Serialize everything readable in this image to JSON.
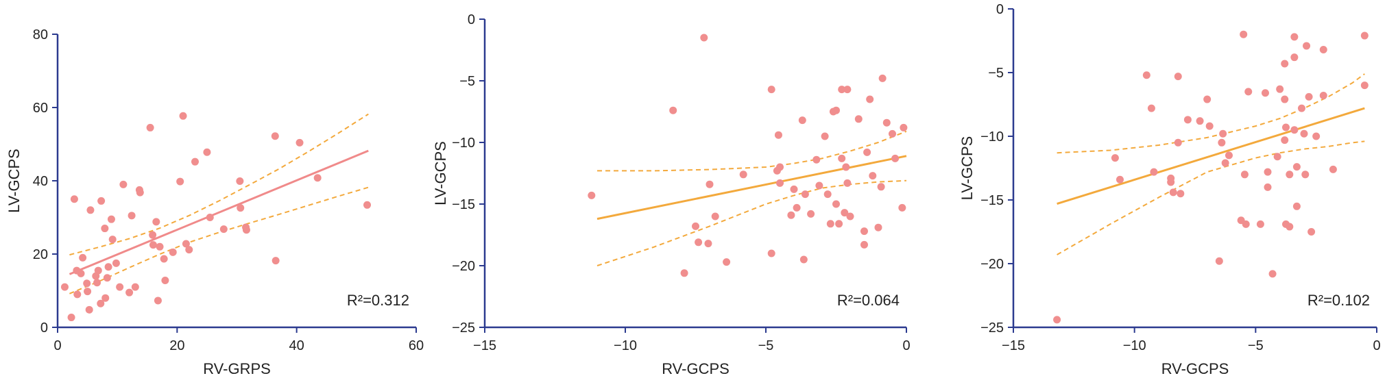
{
  "colors": {
    "axis": "#2b3a8f",
    "point": "#f08e8e",
    "fit_pink": "#f08a8a",
    "fit_orange": "#f3a93c",
    "ci": "#f3a93c"
  },
  "chart_data": [
    {
      "type": "scatter",
      "title": "",
      "xlabel": "RV-GRPS",
      "ylabel": "LV-GCPS",
      "r2_label": "R²=0.312",
      "xlim": [
        0,
        60
      ],
      "ylim": [
        0,
        80
      ],
      "xticks": [
        0,
        20,
        40,
        60
      ],
      "yticks": [
        0,
        20,
        40,
        60,
        80
      ],
      "xtick_labels": [
        "0",
        "20",
        "40",
        "60"
      ],
      "ytick_labels": [
        "0",
        "20",
        "40",
        "60",
        "80"
      ],
      "fit_color": "pink",
      "fit_line": {
        "x": [
          2,
          52
        ],
        "y": [
          14.5,
          48.2
        ]
      },
      "ci_upper": {
        "x": [
          2,
          7,
          12,
          17,
          22,
          27,
          32,
          37,
          42,
          47,
          52
        ],
        "y": [
          19.8,
          21.9,
          24.2,
          27.0,
          30.5,
          34.5,
          38.8,
          43.2,
          48.0,
          53.0,
          58.2
        ]
      },
      "ci_lower": {
        "x": [
          2,
          7,
          12,
          17,
          22,
          27,
          32,
          37,
          42,
          47,
          52
        ],
        "y": [
          9.2,
          12.6,
          16.3,
          19.9,
          23.2,
          25.9,
          28.4,
          30.8,
          33.3,
          35.8,
          38.2
        ]
      },
      "points": [
        [
          1.2,
          11
        ],
        [
          2.3,
          2.7
        ],
        [
          2.8,
          35
        ],
        [
          3.2,
          15.5
        ],
        [
          3.3,
          9
        ],
        [
          3.9,
          14.7
        ],
        [
          4.2,
          19
        ],
        [
          4.9,
          12
        ],
        [
          5,
          9.8
        ],
        [
          5.3,
          4.8
        ],
        [
          5.5,
          32
        ],
        [
          6.4,
          14
        ],
        [
          6.6,
          12.2
        ],
        [
          6.8,
          15.5
        ],
        [
          7.2,
          6.5
        ],
        [
          7.3,
          34.5
        ],
        [
          7.9,
          27
        ],
        [
          8,
          8
        ],
        [
          8.3,
          13.5
        ],
        [
          8.5,
          16.5
        ],
        [
          9,
          29.5
        ],
        [
          9.2,
          24
        ],
        [
          9.8,
          17.5
        ],
        [
          10.4,
          11
        ],
        [
          11,
          39
        ],
        [
          12,
          9.5
        ],
        [
          12.4,
          30.5
        ],
        [
          13,
          11
        ],
        [
          13.7,
          37.5
        ],
        [
          13.8,
          36.8
        ],
        [
          15.5,
          54.5
        ],
        [
          15.9,
          25.2
        ],
        [
          16,
          22.5
        ],
        [
          16.5,
          28.8
        ],
        [
          16.8,
          7.3
        ],
        [
          17.1,
          22
        ],
        [
          17.8,
          18.7
        ],
        [
          18,
          12.8
        ],
        [
          19.3,
          20.5
        ],
        [
          20.5,
          39.8
        ],
        [
          21,
          57.7
        ],
        [
          21.5,
          22.8
        ],
        [
          22,
          21.2
        ],
        [
          23,
          45.2
        ],
        [
          25,
          47.8
        ],
        [
          25.5,
          30
        ],
        [
          27.8,
          26.8
        ],
        [
          30.5,
          39.9
        ],
        [
          30.6,
          32.6
        ],
        [
          31.5,
          27.3
        ],
        [
          31.6,
          26.6
        ],
        [
          36.4,
          52.2
        ],
        [
          36.5,
          18.2
        ],
        [
          40.5,
          50.4
        ],
        [
          43.5,
          40.8
        ],
        [
          51.8,
          33.4
        ]
      ]
    },
    {
      "type": "scatter",
      "title": "",
      "xlabel": "RV-GCPS",
      "ylabel": "LV-GCPS",
      "r2_label": "R²=0.064",
      "xlim": [
        -15,
        0
      ],
      "ylim": [
        -25,
        0
      ],
      "xticks": [
        -15,
        -10,
        -5,
        0
      ],
      "yticks": [
        -25,
        -20,
        -15,
        -10,
        -5,
        0
      ],
      "xtick_labels": [
        "−15",
        "−10",
        "−5",
        "0"
      ],
      "ytick_labels": [
        "−25",
        "−20",
        "−15",
        "−10",
        "−5",
        "0"
      ],
      "fit_color": "orange",
      "fit_line": {
        "x": [
          -11,
          0
        ],
        "y": [
          -16.2,
          -11.1
        ]
      },
      "ci_upper": {
        "x": [
          -11,
          -9,
          -7,
          -5,
          -4,
          -3,
          -2,
          -1,
          0
        ],
        "y": [
          -12.3,
          -12.3,
          -12.2,
          -12.0,
          -11.7,
          -11.3,
          -10.7,
          -10.0,
          -9.1
        ]
      },
      "ci_lower": {
        "x": [
          -11,
          -9,
          -7,
          -5,
          -4,
          -3,
          -2,
          -1,
          0
        ],
        "y": [
          -20.0,
          -18.5,
          -16.8,
          -15.0,
          -14.3,
          -13.7,
          -13.4,
          -13.2,
          -13.1
        ]
      },
      "points": [
        [
          -11.2,
          -14.3
        ],
        [
          -8.3,
          -7.4
        ],
        [
          -7.9,
          -20.6
        ],
        [
          -7.5,
          -16.8
        ],
        [
          -7.4,
          -18.1
        ],
        [
          -7.2,
          -1.5
        ],
        [
          -7.05,
          -18.2
        ],
        [
          -7,
          -13.4
        ],
        [
          -6.8,
          -16
        ],
        [
          -6.4,
          -19.7
        ],
        [
          -5.8,
          -12.6
        ],
        [
          -4.8,
          -5.7
        ],
        [
          -4.8,
          -19
        ],
        [
          -4.6,
          -12.3
        ],
        [
          -4.55,
          -9.4
        ],
        [
          -4.5,
          -12
        ],
        [
          -4.5,
          -13.3
        ],
        [
          -4.1,
          -15.9
        ],
        [
          -4,
          -13.8
        ],
        [
          -3.9,
          -15.3
        ],
        [
          -3.7,
          -8.2
        ],
        [
          -3.65,
          -19.5
        ],
        [
          -3.6,
          -14.2
        ],
        [
          -3.4,
          -15.8
        ],
        [
          -3.2,
          -11.4
        ],
        [
          -3.1,
          -13.5
        ],
        [
          -2.9,
          -9.5
        ],
        [
          -2.8,
          -14.2
        ],
        [
          -2.7,
          -16.6
        ],
        [
          -2.6,
          -7.5
        ],
        [
          -2.5,
          -15
        ],
        [
          -2.5,
          -7.4
        ],
        [
          -2.4,
          -16.6
        ],
        [
          -2.3,
          -5.7
        ],
        [
          -2.3,
          -11.3
        ],
        [
          -2.2,
          -15.7
        ],
        [
          -2.15,
          -12
        ],
        [
          -2.1,
          -5.7
        ],
        [
          -2.1,
          -13.3
        ],
        [
          -2,
          -16
        ],
        [
          -1.7,
          -8.1
        ],
        [
          -1.5,
          -18.3
        ],
        [
          -1.5,
          -17.2
        ],
        [
          -1.4,
          -10.8
        ],
        [
          -1.3,
          -6.5
        ],
        [
          -1.2,
          -12.7
        ],
        [
          -1,
          -16.9
        ],
        [
          -0.9,
          -13.6
        ],
        [
          -0.85,
          -4.8
        ],
        [
          -0.7,
          -8.4
        ],
        [
          -0.5,
          -9.3
        ],
        [
          -0.4,
          -11.3
        ],
        [
          -0.15,
          -15.3
        ],
        [
          -0.1,
          -8.8
        ]
      ]
    },
    {
      "type": "scatter",
      "title": "",
      "xlabel": "RV-GCPS",
      "ylabel": "LV-GCPS",
      "r2_label": "R²=0.102",
      "xlim": [
        -15,
        0
      ],
      "ylim": [
        -25,
        0
      ],
      "xticks": [
        -15,
        -10,
        -5,
        0
      ],
      "yticks": [
        -25,
        -20,
        -15,
        -10,
        -5,
        0
      ],
      "xtick_labels": [
        "−15",
        "−10",
        "−5",
        "0"
      ],
      "ytick_labels": [
        "−25",
        "−20",
        "−15",
        "−10",
        "−5",
        "0"
      ],
      "fit_color": "orange",
      "fit_line": {
        "x": [
          -13.2,
          -0.5
        ],
        "y": [
          -15.3,
          -7.8
        ]
      },
      "ci_upper": {
        "x": [
          -13.2,
          -11,
          -9,
          -7,
          -5,
          -4,
          -3,
          -2,
          -1,
          -0.5
        ],
        "y": [
          -11.3,
          -11.1,
          -10.7,
          -10.1,
          -9.2,
          -8.6,
          -7.8,
          -6.9,
          -5.8,
          -5.1
        ]
      },
      "ci_lower": {
        "x": [
          -13.2,
          -11,
          -9,
          -7,
          -5,
          -4,
          -3,
          -2,
          -1,
          -0.5
        ],
        "y": [
          -19.3,
          -16.9,
          -14.8,
          -12.8,
          -11.7,
          -11.3,
          -11.0,
          -10.8,
          -10.5,
          -10.4
        ]
      },
      "points": [
        [
          -13.2,
          -24.4
        ],
        [
          -10.8,
          -11.7
        ],
        [
          -10.6,
          -13.4
        ],
        [
          -9.5,
          -5.2
        ],
        [
          -9.3,
          -7.8
        ],
        [
          -9.2,
          -12.8
        ],
        [
          -8.5,
          -13.3
        ],
        [
          -8.5,
          -13.6
        ],
        [
          -8.4,
          -14.4
        ],
        [
          -8.2,
          -10.5
        ],
        [
          -8.2,
          -5.3
        ],
        [
          -8.1,
          -14.5
        ],
        [
          -7.8,
          -8.7
        ],
        [
          -7.3,
          -8.8
        ],
        [
          -7,
          -7.1
        ],
        [
          -6.9,
          -9.2
        ],
        [
          -6.5,
          -19.8
        ],
        [
          -6.4,
          -10.5
        ],
        [
          -6.35,
          -9.8
        ],
        [
          -6.25,
          -12.1
        ],
        [
          -6.1,
          -11.5
        ],
        [
          -5.6,
          -16.6
        ],
        [
          -5.5,
          -2
        ],
        [
          -5.45,
          -13
        ],
        [
          -5.4,
          -16.9
        ],
        [
          -5.3,
          -6.5
        ],
        [
          -4.8,
          -16.9
        ],
        [
          -4.6,
          -6.6
        ],
        [
          -4.5,
          -12.8
        ],
        [
          -4.5,
          -14
        ],
        [
          -4.3,
          -20.8
        ],
        [
          -4.1,
          -11.6
        ],
        [
          -4,
          -6.3
        ],
        [
          -3.8,
          -7.1
        ],
        [
          -3.8,
          -4.3
        ],
        [
          -3.8,
          -10.3
        ],
        [
          -3.75,
          -16.9
        ],
        [
          -3.75,
          -9.3
        ],
        [
          -3.6,
          -17.1
        ],
        [
          -3.6,
          -13
        ],
        [
          -3.4,
          -3.8
        ],
        [
          -3.4,
          -2.2
        ],
        [
          -3.4,
          -9.5
        ],
        [
          -3.3,
          -15.5
        ],
        [
          -3.3,
          -12.4
        ],
        [
          -3.1,
          -7.8
        ],
        [
          -3,
          -9.8
        ],
        [
          -2.95,
          -13
        ],
        [
          -2.9,
          -2.9
        ],
        [
          -2.8,
          -6.9
        ],
        [
          -2.7,
          -17.5
        ],
        [
          -2.5,
          -10
        ],
        [
          -2.2,
          -3.2
        ],
        [
          -2.2,
          -6.8
        ],
        [
          -1.8,
          -12.6
        ],
        [
          -0.5,
          -2.1
        ],
        [
          -0.5,
          -6
        ]
      ]
    }
  ]
}
